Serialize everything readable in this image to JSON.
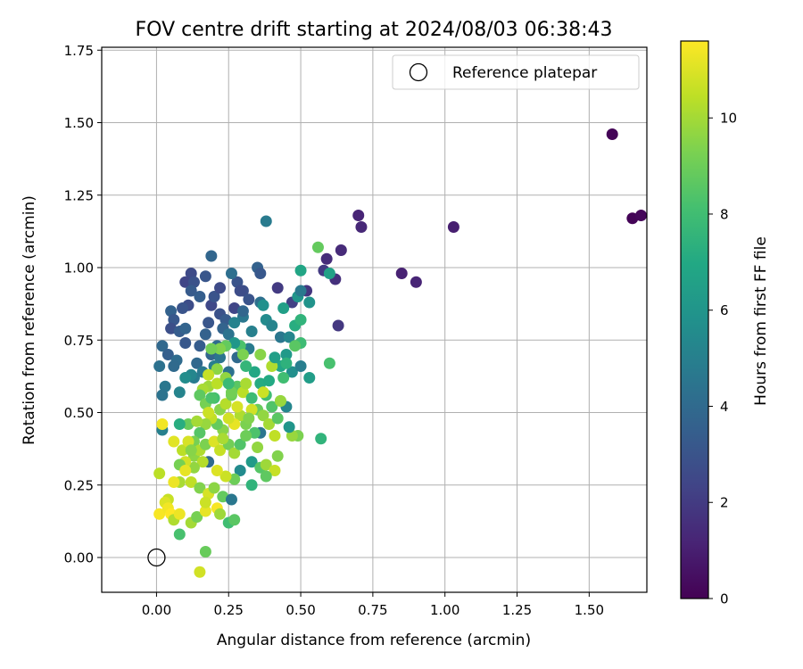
{
  "chart_data": {
    "type": "scatter",
    "title": "FOV centre drift starting at 2024/08/03 06:38:43",
    "xlabel": "Angular distance from reference (arcmin)",
    "ylabel": "Rotation from reference (arcmin)",
    "xlim": [
      -0.19,
      1.7
    ],
    "ylim": [
      -0.12,
      1.76
    ],
    "xticks": [
      "0.00",
      "0.25",
      "0.50",
      "0.75",
      "1.00",
      "1.25",
      "1.50"
    ],
    "yticks": [
      "0.00",
      "0.25",
      "0.50",
      "0.75",
      "1.00",
      "1.25",
      "1.50",
      "1.75"
    ],
    "grid": true,
    "legend": {
      "placement": "top-right",
      "entries": [
        "Reference platepar"
      ]
    },
    "colorbar": {
      "label": "Hours from first FF file",
      "range": [
        0,
        11.6
      ],
      "ticks": [
        "0",
        "2",
        "4",
        "6",
        "8",
        "10"
      ],
      "colormap": "viridis"
    },
    "reference_point": {
      "x": 0.0,
      "y": 0.0,
      "label": "Reference platepar"
    },
    "series": [
      {
        "points": [
          [
            1.58,
            1.46,
            0.1
          ],
          [
            1.65,
            1.17,
            0.1
          ],
          [
            1.68,
            1.18,
            0.2
          ],
          [
            1.03,
            1.14,
            1.0
          ],
          [
            0.7,
            1.18,
            1.2
          ],
          [
            0.71,
            1.14,
            1.3
          ],
          [
            0.64,
            1.06,
            1.4
          ],
          [
            0.59,
            1.03,
            1.5
          ],
          [
            0.85,
            0.98,
            1.1
          ],
          [
            0.9,
            0.95,
            1.2
          ],
          [
            0.62,
            0.96,
            1.6
          ],
          [
            0.52,
            0.92,
            1.8
          ],
          [
            0.63,
            0.8,
            1.9
          ],
          [
            0.42,
            0.93,
            2.0
          ],
          [
            0.47,
            0.88,
            2.2
          ],
          [
            0.58,
            0.99,
            2.0
          ],
          [
            0.38,
            1.16,
            4.8
          ],
          [
            0.35,
            1.0,
            3.6
          ],
          [
            0.36,
            0.98,
            3.2
          ],
          [
            0.3,
            0.92,
            2.8
          ],
          [
            0.28,
            0.95,
            3.0
          ],
          [
            0.26,
            0.98,
            4.2
          ],
          [
            0.19,
            1.04,
            3.8
          ],
          [
            0.17,
            0.97,
            3.1
          ],
          [
            0.12,
            0.98,
            2.6
          ],
          [
            0.1,
            0.95,
            2.4
          ],
          [
            0.13,
            0.95,
            2.9
          ],
          [
            0.12,
            0.92,
            3.3
          ],
          [
            0.15,
            0.9,
            3.5
          ],
          [
            0.11,
            0.87,
            2.7
          ],
          [
            0.09,
            0.86,
            3.0
          ],
          [
            0.05,
            0.85,
            3.6
          ],
          [
            0.06,
            0.82,
            3.2
          ],
          [
            0.05,
            0.79,
            2.8
          ],
          [
            0.08,
            0.78,
            3.4
          ],
          [
            0.1,
            0.79,
            3.7
          ],
          [
            0.02,
            0.73,
            3.9
          ],
          [
            0.04,
            0.7,
            3.5
          ],
          [
            0.07,
            0.68,
            4.1
          ],
          [
            0.1,
            0.74,
            3.2
          ],
          [
            0.01,
            0.66,
            4.3
          ],
          [
            0.06,
            0.66,
            4.0
          ],
          [
            0.03,
            0.59,
            4.6
          ],
          [
            0.02,
            0.56,
            4.4
          ],
          [
            0.08,
            0.57,
            5.2
          ],
          [
            0.13,
            0.62,
            4.8
          ],
          [
            0.14,
            0.67,
            3.9
          ],
          [
            0.19,
            0.87,
            2.5
          ],
          [
            0.2,
            0.9,
            3.0
          ],
          [
            0.22,
            0.93,
            2.6
          ],
          [
            0.18,
            0.81,
            3.1
          ],
          [
            0.22,
            0.84,
            2.9
          ],
          [
            0.24,
            0.82,
            3.3
          ],
          [
            0.23,
            0.79,
            3.7
          ],
          [
            0.27,
            0.86,
            2.4
          ],
          [
            0.29,
            0.92,
            2.7
          ],
          [
            0.32,
            0.89,
            3.0
          ],
          [
            0.36,
            0.88,
            4.2
          ],
          [
            0.3,
            0.83,
            4.6
          ],
          [
            0.27,
            0.81,
            5.1
          ],
          [
            0.25,
            0.77,
            4.4
          ],
          [
            0.21,
            0.73,
            4.1
          ],
          [
            0.17,
            0.77,
            3.6
          ],
          [
            0.15,
            0.73,
            3.4
          ],
          [
            0.19,
            0.7,
            3.8
          ],
          [
            0.22,
            0.69,
            4.5
          ],
          [
            0.2,
            0.66,
            4.9
          ],
          [
            0.16,
            0.64,
            4.7
          ],
          [
            0.12,
            0.63,
            5.3
          ],
          [
            0.1,
            0.62,
            5.6
          ],
          [
            0.25,
            0.64,
            4.3
          ],
          [
            0.28,
            0.69,
            4.0
          ],
          [
            0.32,
            0.72,
            4.8
          ],
          [
            0.33,
            0.78,
            5.0
          ],
          [
            0.38,
            0.82,
            5.5
          ],
          [
            0.37,
            0.87,
            5.8
          ],
          [
            0.4,
            0.8,
            5.2
          ],
          [
            0.43,
            0.76,
            4.6
          ],
          [
            0.46,
            0.76,
            5.3
          ],
          [
            0.44,
            0.86,
            6.5
          ],
          [
            0.49,
            0.9,
            6.0
          ],
          [
            0.48,
            0.8,
            7.2
          ],
          [
            0.5,
            0.99,
            6.8
          ],
          [
            0.5,
            0.92,
            4.7
          ],
          [
            0.53,
            0.88,
            5.9
          ],
          [
            0.5,
            0.82,
            7.5
          ],
          [
            0.5,
            0.74,
            7.9
          ],
          [
            0.48,
            0.73,
            8.6
          ],
          [
            0.45,
            0.7,
            6.2
          ],
          [
            0.43,
            0.66,
            6.8
          ],
          [
            0.47,
            0.64,
            5.7
          ],
          [
            0.5,
            0.66,
            4.9
          ],
          [
            0.53,
            0.62,
            6.4
          ],
          [
            0.56,
            1.07,
            8.8
          ],
          [
            0.6,
            0.98,
            6.6
          ],
          [
            0.6,
            0.67,
            8.2
          ],
          [
            0.57,
            0.41,
            7.5
          ],
          [
            0.49,
            0.42,
            9.3
          ],
          [
            0.47,
            0.42,
            9.8
          ],
          [
            0.45,
            0.52,
            5.3
          ],
          [
            0.43,
            0.54,
            9.0
          ],
          [
            0.4,
            0.52,
            8.4
          ],
          [
            0.38,
            0.56,
            8.0
          ],
          [
            0.36,
            0.6,
            7.1
          ],
          [
            0.34,
            0.64,
            6.9
          ],
          [
            0.31,
            0.66,
            7.6
          ],
          [
            0.29,
            0.73,
            8.3
          ],
          [
            0.27,
            0.74,
            6.1
          ],
          [
            0.24,
            0.73,
            8.8
          ],
          [
            0.22,
            0.72,
            9.4
          ],
          [
            0.19,
            0.72,
            9.1
          ],
          [
            0.21,
            0.65,
            9.6
          ],
          [
            0.18,
            0.63,
            10.6
          ],
          [
            0.18,
            0.59,
            9.9
          ],
          [
            0.16,
            0.58,
            10.1
          ],
          [
            0.15,
            0.56,
            8.7
          ],
          [
            0.17,
            0.53,
            9.2
          ],
          [
            0.2,
            0.55,
            8.1
          ],
          [
            0.22,
            0.51,
            9.5
          ],
          [
            0.24,
            0.53,
            10.3
          ],
          [
            0.26,
            0.56,
            9.0
          ],
          [
            0.28,
            0.59,
            8.6
          ],
          [
            0.3,
            0.57,
            10.4
          ],
          [
            0.33,
            0.55,
            7.9
          ],
          [
            0.35,
            0.51,
            8.9
          ],
          [
            0.37,
            0.49,
            9.7
          ],
          [
            0.39,
            0.46,
            10.0
          ],
          [
            0.36,
            0.43,
            4.5
          ],
          [
            0.34,
            0.43,
            8.3
          ],
          [
            0.31,
            0.46,
            9.3
          ],
          [
            0.29,
            0.49,
            10.2
          ],
          [
            0.27,
            0.46,
            11.2
          ],
          [
            0.25,
            0.48,
            10.8
          ],
          [
            0.23,
            0.44,
            9.5
          ],
          [
            0.21,
            0.46,
            8.8
          ],
          [
            0.19,
            0.48,
            10.5
          ],
          [
            0.17,
            0.46,
            9.8
          ],
          [
            0.15,
            0.43,
            8.5
          ],
          [
            0.13,
            0.4,
            9.2
          ],
          [
            0.11,
            0.46,
            8.9
          ],
          [
            0.08,
            0.46,
            7.2
          ],
          [
            0.02,
            0.44,
            5.0
          ],
          [
            0.02,
            0.46,
            11.4
          ],
          [
            0.06,
            0.4,
            11.1
          ],
          [
            0.09,
            0.37,
            10.4
          ],
          [
            0.11,
            0.4,
            10.9
          ],
          [
            0.13,
            0.35,
            9.6
          ],
          [
            0.15,
            0.37,
            10.2
          ],
          [
            0.17,
            0.39,
            9.3
          ],
          [
            0.2,
            0.4,
            11.0
          ],
          [
            0.22,
            0.37,
            10.6
          ],
          [
            0.25,
            0.39,
            9.1
          ],
          [
            0.27,
            0.36,
            10.0
          ],
          [
            0.29,
            0.39,
            8.4
          ],
          [
            0.31,
            0.42,
            9.0
          ],
          [
            0.33,
            0.33,
            6.3
          ],
          [
            0.36,
            0.31,
            8.5
          ],
          [
            0.38,
            0.32,
            9.9
          ],
          [
            0.41,
            0.3,
            10.6
          ],
          [
            0.42,
            0.35,
            9.4
          ],
          [
            0.38,
            0.28,
            8.7
          ],
          [
            0.33,
            0.25,
            7.5
          ],
          [
            0.29,
            0.3,
            5.5
          ],
          [
            0.27,
            0.27,
            9.0
          ],
          [
            0.24,
            0.28,
            10.7
          ],
          [
            0.21,
            0.3,
            11.0
          ],
          [
            0.18,
            0.33,
            4.0
          ],
          [
            0.16,
            0.33,
            10.3
          ],
          [
            0.13,
            0.31,
            9.7
          ],
          [
            0.1,
            0.33,
            10.8
          ],
          [
            0.08,
            0.32,
            9.2
          ],
          [
            0.1,
            0.3,
            11.2
          ],
          [
            0.12,
            0.26,
            10.5
          ],
          [
            0.15,
            0.24,
            9.4
          ],
          [
            0.18,
            0.22,
            10.9
          ],
          [
            0.2,
            0.24,
            9.6
          ],
          [
            0.23,
            0.21,
            8.8
          ],
          [
            0.26,
            0.2,
            4.6
          ],
          [
            0.08,
            0.26,
            10.1
          ],
          [
            0.06,
            0.26,
            11.3
          ],
          [
            0.04,
            0.2,
            10.6
          ],
          [
            0.03,
            0.19,
            11.0
          ],
          [
            0.01,
            0.29,
            10.4
          ],
          [
            0.01,
            0.15,
            11.5
          ],
          [
            0.04,
            0.17,
            11.4
          ],
          [
            0.05,
            0.15,
            11.6
          ],
          [
            0.06,
            0.13,
            10.2
          ],
          [
            0.08,
            0.15,
            11.3
          ],
          [
            0.08,
            0.08,
            8.2
          ],
          [
            0.12,
            0.12,
            10.0
          ],
          [
            0.14,
            0.14,
            9.2
          ],
          [
            0.17,
            0.16,
            11.2
          ],
          [
            0.17,
            0.19,
            10.7
          ],
          [
            0.21,
            0.17,
            11.5
          ],
          [
            0.22,
            0.15,
            9.9
          ],
          [
            0.25,
            0.12,
            8.0
          ],
          [
            0.27,
            0.13,
            8.6
          ],
          [
            0.17,
            0.02,
            8.9
          ],
          [
            0.15,
            -0.05,
            10.8
          ],
          [
            0.31,
            0.6,
            10.1
          ],
          [
            0.33,
            0.51,
            10.8
          ],
          [
            0.36,
            0.7,
            9.5
          ],
          [
            0.4,
            0.66,
            10.2
          ],
          [
            0.43,
            0.54,
            9.8
          ],
          [
            0.44,
            0.62,
            8.0
          ],
          [
            0.41,
            0.42,
            10.5
          ],
          [
            0.3,
            0.85,
            3.8
          ],
          [
            0.26,
            0.57,
            9.1
          ],
          [
            0.21,
            0.6,
            10.4
          ],
          [
            0.19,
            0.55,
            8.3
          ],
          [
            0.24,
            0.62,
            9.7
          ],
          [
            0.28,
            0.52,
            10.9
          ],
          [
            0.32,
            0.48,
            9.4
          ],
          [
            0.39,
            0.61,
            7.0
          ],
          [
            0.42,
            0.48,
            8.6
          ],
          [
            0.37,
            0.57,
            10.7
          ],
          [
            0.23,
            0.41,
            10.1
          ],
          [
            0.14,
            0.47,
            10.0
          ],
          [
            0.35,
            0.38,
            9.7
          ],
          [
            0.46,
            0.45,
            6.0
          ],
          [
            0.41,
            0.69,
            6.5
          ],
          [
            0.45,
            0.67,
            7.4
          ],
          [
            0.3,
            0.7,
            9.3
          ],
          [
            0.25,
            0.6,
            7.8
          ],
          [
            0.18,
            0.5,
            10.7
          ],
          [
            0.12,
            0.37,
            9.5
          ]
        ]
      }
    ]
  }
}
